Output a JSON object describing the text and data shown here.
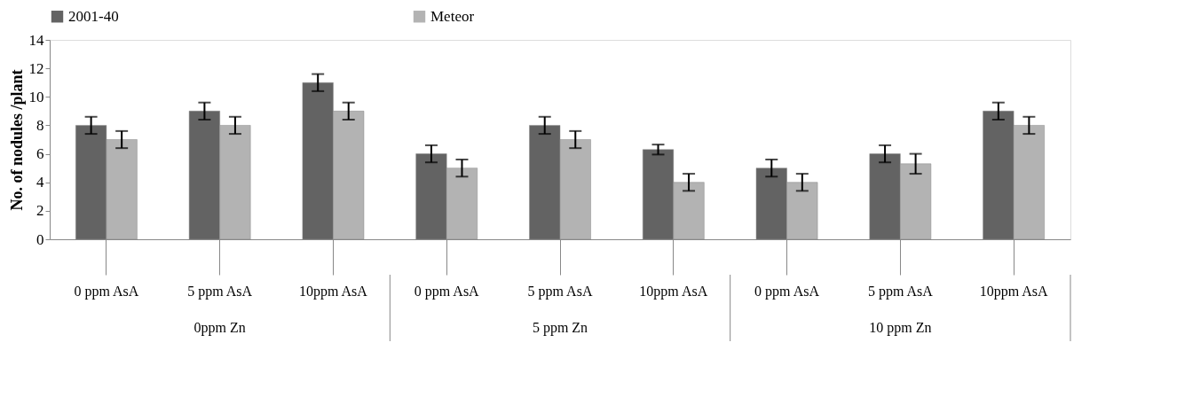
{
  "chart_data": {
    "type": "bar",
    "ylabel": "No. of nodules /plant",
    "categories": [
      "0 ppm AsA",
      "5 ppm AsA",
      "10ppm AsA",
      "0 ppm AsA",
      "5 ppm AsA",
      "10ppm AsA",
      "0 ppm AsA",
      "5 ppm AsA",
      "10ppm AsA"
    ],
    "series": [
      {
        "name": "2001-40",
        "color": "#636363",
        "values": [
          8,
          9,
          11,
          6,
          8,
          6.3,
          5,
          6,
          9
        ],
        "errors": [
          0.6,
          0.6,
          0.6,
          0.6,
          0.6,
          0.35,
          0.6,
          0.6,
          0.6
        ]
      },
      {
        "name": "Meteor",
        "color": "#b3b3b3",
        "values": [
          7,
          8,
          9,
          5,
          7,
          4,
          4,
          5.3,
          8
        ],
        "errors": [
          0.6,
          0.6,
          0.6,
          0.6,
          0.6,
          0.6,
          0.6,
          0.7,
          0.6
        ]
      }
    ],
    "ylim": [
      0,
      14
    ],
    "yticks": [
      0,
      2,
      4,
      6,
      8,
      10,
      12,
      14
    ],
    "grid": false,
    "legend": "top",
    "annotations": [
      "0ppm Zn",
      "5 ppm Zn",
      "10 ppm Zn"
    ]
  }
}
